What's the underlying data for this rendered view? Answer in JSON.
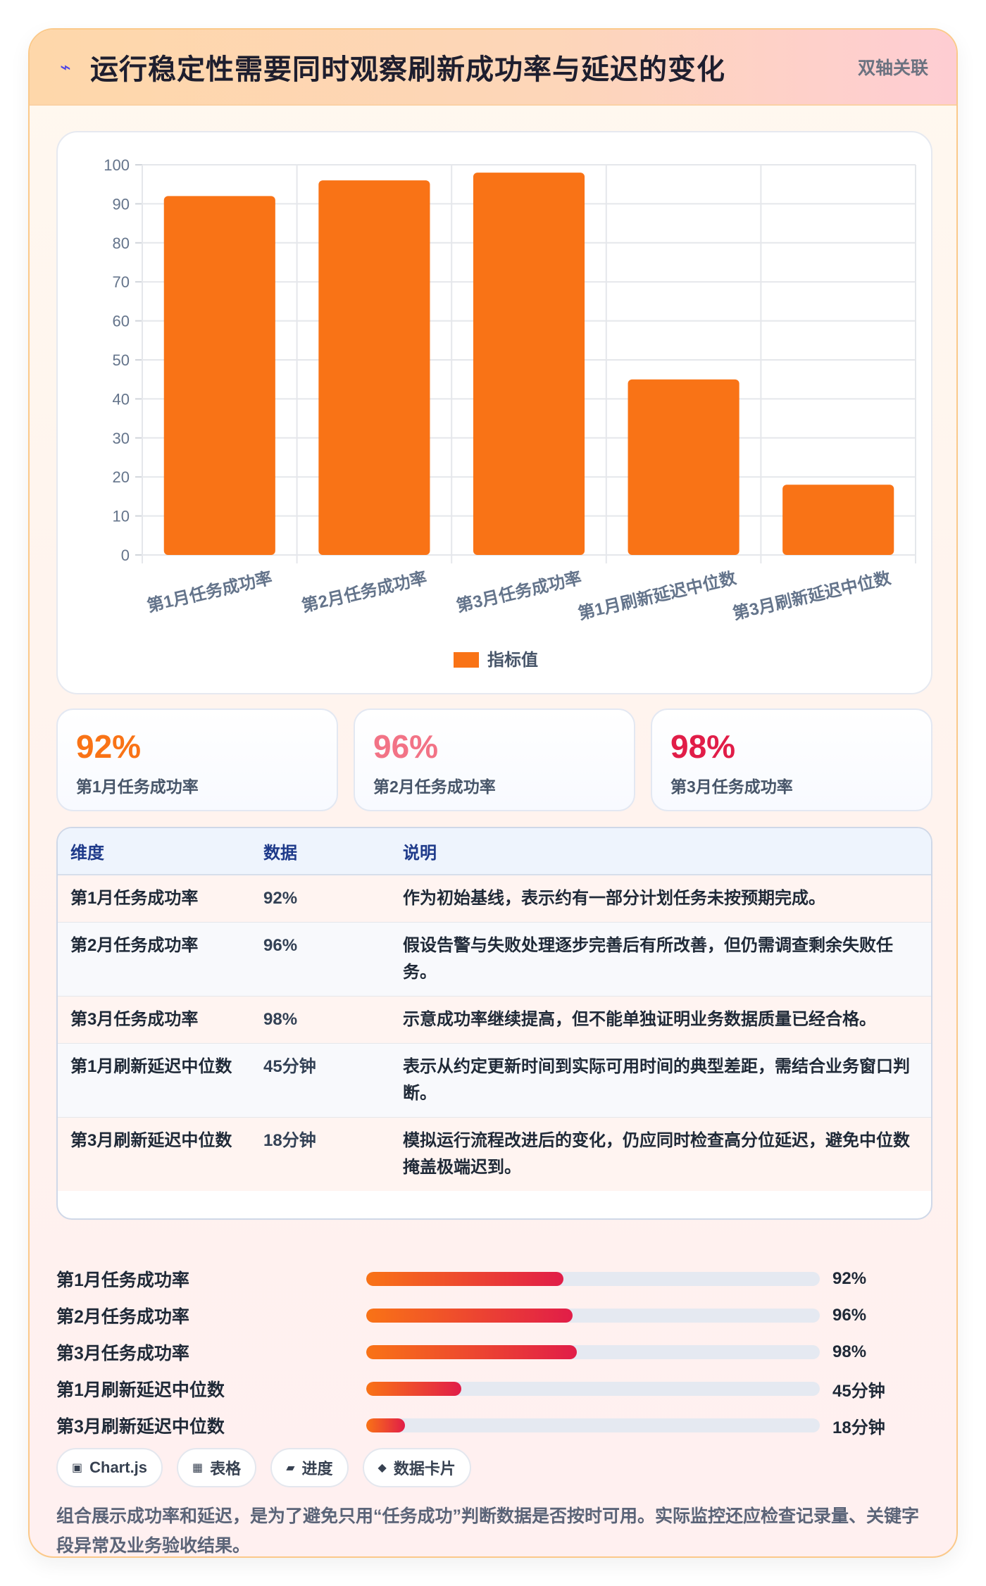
{
  "header": {
    "icon": "lightning-icon",
    "title": "运行稳定性需要同时观察刷新成功率与延迟的变化",
    "tag": "双轴关联"
  },
  "chart_data": {
    "type": "bar",
    "categories": [
      "第1月任务成功率",
      "第2月任务成功率",
      "第3月任务成功率",
      "第1月刷新延迟中位数",
      "第3月刷新延迟中位数"
    ],
    "series": [
      {
        "name": "指标值",
        "values": [
          92,
          96,
          98,
          45,
          18
        ],
        "color": "#f97316"
      }
    ],
    "ylim": [
      0,
      100
    ],
    "yticks": [
      "0",
      "10",
      "20",
      "30",
      "40",
      "50",
      "60",
      "70",
      "80",
      "90",
      "100"
    ],
    "grid": true,
    "legend": "bottom"
  },
  "kpis": [
    {
      "value": "92%",
      "label": "第1月任务成功率",
      "color": "#f97316"
    },
    {
      "value": "96%",
      "label": "第2月任务成功率",
      "color": "#f27386"
    },
    {
      "value": "98%",
      "label": "第3月任务成功率",
      "color": "#e11d48"
    }
  ],
  "table": {
    "headers": [
      "维度",
      "数据",
      "说明"
    ],
    "rows": [
      [
        "第1月任务成功率",
        "92%",
        "作为初始基线，表示约有一部分计划任务未按预期完成。"
      ],
      [
        "第2月任务成功率",
        "96%",
        "假设告警与失败处理逐步完善后有所改善，但仍需调查剩余失败任务。"
      ],
      [
        "第3月任务成功率",
        "98%",
        "示意成功率继续提高，但不能单独证明业务数据质量已经合格。"
      ],
      [
        "第1月刷新延迟中位数",
        "45分钟",
        "表示从约定更新时间到实际可用时间的典型差距，需结合业务窗口判断。"
      ],
      [
        "第3月刷新延迟中位数",
        "18分钟",
        "模拟运行流程改进后的变化，仍应同时检查高分位延迟，避免中位数掩盖极端迟到。"
      ]
    ]
  },
  "progress": [
    {
      "label": "第1月任务成功率",
      "value": "92%",
      "fraction": 0.435
    },
    {
      "label": "第2月任务成功率",
      "value": "96%",
      "fraction": 0.455
    },
    {
      "label": "第3月任务成功率",
      "value": "98%",
      "fraction": 0.465
    },
    {
      "label": "第1月刷新延迟中位数",
      "value": "45分钟",
      "fraction": 0.21
    },
    {
      "label": "第3月刷新延迟中位数",
      "value": "18分钟",
      "fraction": 0.085
    }
  ],
  "chips": [
    {
      "icon": "▣",
      "label": "Chart.js"
    },
    {
      "icon": "▦",
      "label": "表格"
    },
    {
      "icon": "▰",
      "label": "进度"
    },
    {
      "icon": "◆",
      "label": "数据卡片"
    }
  ],
  "footnote": "组合展示成功率和延迟，是为了避免只用“任务成功”判断数据是否按时可用。实际监控还应检查记录量、关键字段异常及业务验收结果。"
}
